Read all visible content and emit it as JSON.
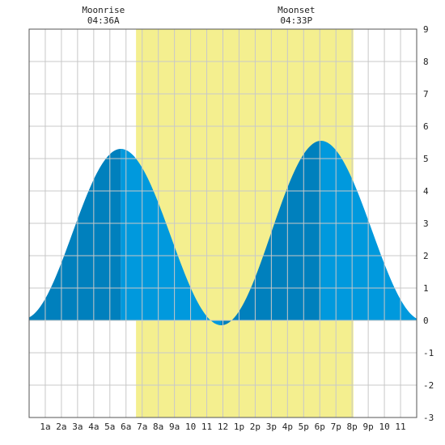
{
  "chart_data": {
    "type": "area",
    "title": "",
    "xlabel": "",
    "ylabel": "",
    "x_unit": "hour of day",
    "xlim": [
      0,
      24
    ],
    "ylim": [
      -3,
      9
    ],
    "grid": true,
    "x_tick_values": [
      1,
      2,
      3,
      4,
      5,
      6,
      7,
      8,
      9,
      10,
      11,
      12,
      13,
      14,
      15,
      16,
      17,
      18,
      19,
      20,
      21,
      22,
      23
    ],
    "x_tick_labels": [
      "1a",
      "2a",
      "3a",
      "4a",
      "5a",
      "6a",
      "7a",
      "8a",
      "9a",
      "10",
      "11",
      "12",
      "1p",
      "2p",
      "3p",
      "4p",
      "5p",
      "6p",
      "7p",
      "8p",
      "9p",
      "10",
      "11"
    ],
    "y_ticks": [
      -3,
      -2,
      -1,
      0,
      1,
      2,
      3,
      4,
      5,
      6,
      7,
      8,
      9
    ],
    "daylight": {
      "start": 6.62,
      "end": 20.08,
      "color": "#f4ef8f"
    },
    "annotations": [
      {
        "label": "Moonrise",
        "time": "04:36A",
        "x": 4.6
      },
      {
        "label": "Moonset",
        "time": "04:33P",
        "x": 16.55
      }
    ],
    "tide_extremes": [
      {
        "x": -0.35,
        "y": 0.05
      },
      {
        "x": 5.68,
        "y": 5.3
      },
      {
        "x": 11.9,
        "y": -0.15
      },
      {
        "x": 18.07,
        "y": 5.55
      },
      {
        "x": 24.4,
        "y": 0.0
      }
    ],
    "colors": {
      "tide_dark": "#0080bd",
      "tide_light": "#0099dd",
      "grid": "#c8c8c8",
      "frame": "#555555",
      "background": "#ffffff"
    }
  }
}
